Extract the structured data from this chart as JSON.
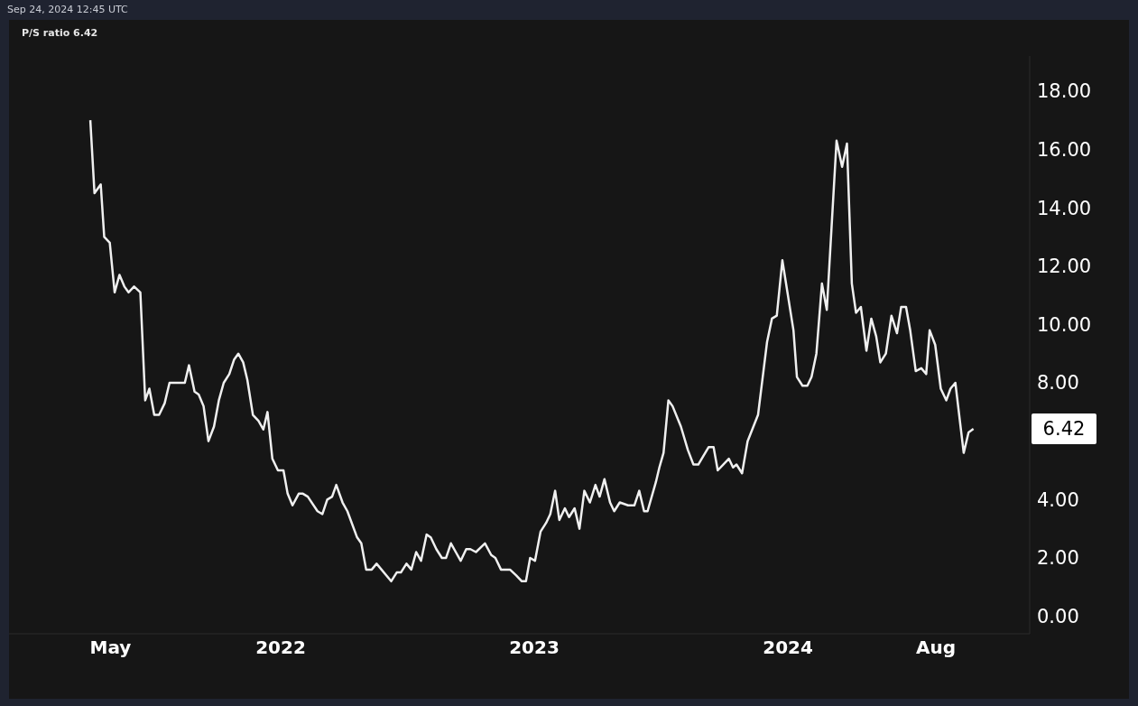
{
  "chart_data": {
    "type": "line",
    "title": "P/S ratio 6.42",
    "annotations": [
      "Sep 24, 2024 12:45 UTC",
      "6.42"
    ],
    "x": [
      "2021-04-02",
      "2021-04-08",
      "2021-04-17",
      "2021-04-22",
      "2021-04-30",
      "2021-05-07",
      "2021-05-14",
      "2021-05-21",
      "2021-05-27",
      "2021-06-04",
      "2021-06-13",
      "2021-06-20",
      "2021-06-26",
      "2021-07-03",
      "2021-07-10",
      "2021-07-18",
      "2021-07-25",
      "2021-08-01",
      "2021-08-08",
      "2021-08-16",
      "2021-08-22",
      "2021-08-30",
      "2021-09-05",
      "2021-09-12",
      "2021-09-19",
      "2021-09-27",
      "2021-10-04",
      "2021-10-11",
      "2021-10-19",
      "2021-10-26",
      "2021-11-01",
      "2021-11-08",
      "2021-11-14",
      "2021-11-22",
      "2021-11-30",
      "2021-12-07",
      "2021-12-13",
      "2021-12-20",
      "2021-12-28",
      "2022-01-05",
      "2022-01-11",
      "2022-01-18",
      "2022-01-27",
      "2022-02-02",
      "2022-02-09",
      "2022-02-23",
      "2022-03-02",
      "2022-03-09",
      "2022-03-16",
      "2022-03-22",
      "2022-03-31",
      "2022-04-07",
      "2022-04-21",
      "2022-04-27",
      "2022-05-04",
      "2022-05-12",
      "2022-05-19",
      "2022-06-09",
      "2022-06-17",
      "2022-06-23",
      "2022-07-01",
      "2022-07-08",
      "2022-07-15",
      "2022-07-22",
      "2022-07-30",
      "2022-08-05",
      "2022-08-13",
      "2022-08-21",
      "2022-08-27",
      "2022-09-03",
      "2022-09-10",
      "2022-09-17",
      "2022-09-25",
      "2022-10-01",
      "2022-10-09",
      "2022-10-22",
      "2022-10-31",
      "2022-11-06",
      "2022-11-14",
      "2022-11-21",
      "2022-11-27",
      "2022-12-06",
      "2022-12-14",
      "2022-12-20",
      "2022-12-26",
      "2023-01-02",
      "2023-01-10",
      "2023-01-18",
      "2023-01-24",
      "2023-01-31",
      "2023-02-06",
      "2023-02-14",
      "2023-02-20",
      "2023-02-28",
      "2023-03-07",
      "2023-03-14",
      "2023-03-22",
      "2023-03-30",
      "2023-04-05",
      "2023-04-12",
      "2023-04-20",
      "2023-04-26",
      "2023-05-04",
      "2023-05-16",
      "2023-05-25",
      "2023-06-01",
      "2023-06-08",
      "2023-06-13",
      "2023-06-25",
      "2023-06-30",
      "2023-07-06",
      "2023-07-13",
      "2023-07-19",
      "2023-07-31",
      "2023-08-10",
      "2023-08-18",
      "2023-08-25",
      "2023-09-09",
      "2023-09-16",
      "2023-09-22",
      "2023-10-08",
      "2023-10-14",
      "2023-10-19",
      "2023-10-27",
      "2023-11-04",
      "2023-11-19",
      "2023-12-02",
      "2023-12-09",
      "2023-12-16",
      "2023-12-24",
      "2024-01-09",
      "2024-01-14",
      "2024-01-22",
      "2024-01-29",
      "2024-02-04",
      "2024-02-11",
      "2024-02-19",
      "2024-02-26",
      "2024-03-11",
      "2024-03-19",
      "2024-03-26",
      "2024-04-02",
      "2024-04-08",
      "2024-04-15",
      "2024-04-23",
      "2024-04-30",
      "2024-05-07",
      "2024-05-13",
      "2024-05-21",
      "2024-05-29",
      "2024-06-06",
      "2024-06-12",
      "2024-06-19",
      "2024-06-25",
      "2024-07-03",
      "2024-07-11",
      "2024-07-18",
      "2024-07-23",
      "2024-07-31",
      "2024-08-08",
      "2024-08-16",
      "2024-08-22",
      "2024-08-29",
      "2024-09-10",
      "2024-09-17",
      "2024-09-24"
    ],
    "series": [
      {
        "color": "#f0f0f0",
        "values": [
          17.0,
          14.5,
          14.8,
          13.0,
          12.8,
          11.1,
          11.7,
          11.3,
          11.1,
          11.3,
          11.1,
          7.4,
          7.8,
          6.9,
          6.9,
          7.3,
          8.0,
          8.0,
          8.0,
          8.0,
          8.6,
          7.7,
          7.6,
          7.2,
          6.0,
          6.5,
          7.4,
          8.0,
          8.3,
          8.8,
          9.0,
          8.7,
          8.1,
          6.9,
          6.7,
          6.4,
          7.0,
          5.4,
          5.0,
          5.0,
          4.2,
          3.8,
          4.2,
          4.2,
          4.1,
          3.6,
          3.5,
          4.0,
          4.1,
          4.5,
          3.9,
          3.6,
          2.7,
          2.5,
          1.6,
          1.6,
          1.8,
          1.2,
          1.5,
          1.5,
          1.8,
          1.6,
          2.2,
          1.9,
          2.8,
          2.7,
          2.3,
          2.0,
          2.0,
          2.5,
          2.2,
          1.9,
          2.3,
          2.3,
          2.2,
          2.5,
          2.1,
          2.0,
          1.6,
          1.6,
          1.6,
          1.4,
          1.2,
          1.2,
          2.0,
          1.9,
          2.9,
          3.2,
          3.5,
          4.3,
          3.3,
          3.7,
          3.4,
          3.7,
          3.0,
          4.3,
          3.9,
          4.5,
          4.1,
          4.7,
          3.9,
          3.6,
          3.9,
          3.8,
          3.8,
          4.3,
          3.6,
          3.6,
          4.6,
          5.1,
          5.6,
          7.4,
          7.2,
          6.5,
          5.7,
          5.2,
          5.2,
          5.8,
          5.8,
          5.0,
          5.4,
          5.1,
          5.2,
          4.9,
          6.0,
          6.9,
          9.4,
          10.2,
          10.3,
          12.2,
          9.8,
          8.2,
          7.9,
          7.9,
          8.2,
          9.0,
          11.4,
          10.5,
          16.3,
          15.4,
          16.2,
          11.4,
          10.4,
          10.6,
          9.1,
          10.2,
          9.6,
          8.7,
          9.0,
          10.3,
          9.7,
          10.6,
          10.6,
          9.8,
          8.4,
          8.5,
          8.3,
          9.8,
          9.3,
          7.8,
          7.4,
          7.8,
          8.0,
          5.6,
          6.3,
          6.42
        ]
      }
    ],
    "xlim": [
      "2020-12-06",
      "2024-12-14"
    ],
    "xticks": [
      {
        "value": "2021-05-01",
        "label": "May"
      },
      {
        "value": "2022-01-01",
        "label": "2022"
      },
      {
        "value": "2023-01-01",
        "label": "2023"
      },
      {
        "value": "2024-01-01",
        "label": "2024"
      },
      {
        "value": "2024-08-01",
        "label": "Aug"
      }
    ],
    "ylim": [
      -0.6,
      19.2
    ],
    "yticks": [
      {
        "value": 0,
        "label": "0.00"
      },
      {
        "value": 2,
        "label": "2.00"
      },
      {
        "value": 4,
        "label": "4.00"
      },
      {
        "value": 8,
        "label": "8.00"
      },
      {
        "value": 10,
        "label": "10.00"
      },
      {
        "value": 12,
        "label": "12.00"
      },
      {
        "value": 14,
        "label": "14.00"
      },
      {
        "value": 16,
        "label": "16.00"
      },
      {
        "value": 18,
        "label": "18.00"
      }
    ]
  }
}
